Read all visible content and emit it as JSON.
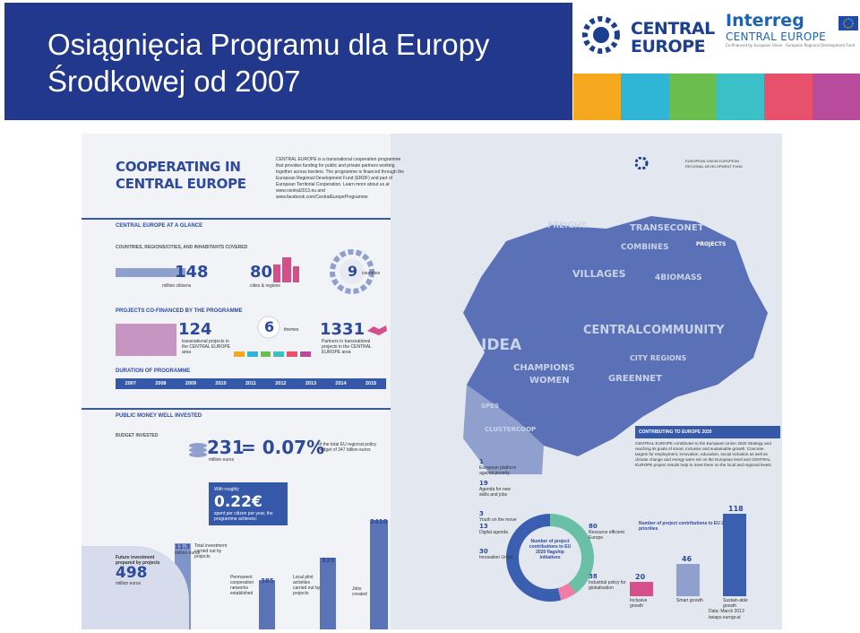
{
  "header": {
    "title_line1": "Osiągnięcia Programu dla Europy",
    "title_line2": "Środkowej od 2007",
    "logo_central": "CENTRAL",
    "logo_europe": "EUROPE",
    "interreg_name": "Interreg",
    "interreg_sub": "CENTRAL EUROPE",
    "interreg_fund": "Co-financed by European Union - European Regional Development Fund",
    "strip_colors": [
      "#f6a81f",
      "#2fb6d6",
      "#6abe4d",
      "#3cc0c7",
      "#e8516b",
      "#b84b9b"
    ]
  },
  "poster": {
    "title_line1": "COOPERATING IN",
    "title_line2": "CENTRAL EUROPE",
    "intro": "CENTRAL EUROPE is a transnational cooperation programme that provides funding for public and private partners working together across borders. The programme is financed through the European Regional Development Fund (ERDF) and part of European Territorial Cooperation. Learn more about us at www.central2013.eu and www.facebook.com/CentralEuropeProgramme",
    "glance": "CENTRAL EUROPE AT A GLANCE",
    "covered": "COUNTRIES, REGIONS/CITIES, AND INHABITANTS COVERED",
    "citizens_num": "148",
    "citizens_label": "million citizens",
    "cities_num": "80",
    "cities_label": "cities & regions",
    "countries_num": "9",
    "countries_label": "countries",
    "cofinanced": "PROJECTS CO-FINANCED BY THE PROGRAMME",
    "projects_num": "124",
    "projects_label": "transnational projects in the CENTRAL EUROPE area",
    "themes_num": "6",
    "themes_label": "themes",
    "partners_num": "1331",
    "partners_label": "Partners in transnational projects in the CENTRAL EUROPE area",
    "duration": "DURATION OF PROGRAMME",
    "years": [
      "2007",
      "2008",
      "2009",
      "2010",
      "2011",
      "2012",
      "2013",
      "2014",
      "2015"
    ],
    "money": "PUBLIC MONEY WELL INVESTED",
    "budget": "BUDGET INVESTED",
    "budget_num": "231",
    "budget_eq": "= 0.07%",
    "budget_label": "million euros",
    "budget_share": "of the total EU regional policy budget of 347 billion euros",
    "roughly": "With roughly",
    "per_citizen": "0.22€",
    "per_citizen_label": "spent per citizen per year, the programme achieves:",
    "future_label": "Future investment prepared by projects",
    "future_num": "498",
    "future_unit": "million euros",
    "total_inv": "Total investment carried out by projects",
    "total_inv_num": "11.3",
    "total_inv_unit": "million euros",
    "networks_num": "385",
    "networks_label": "Permanent cooperation networks established",
    "pilots_num": "839",
    "pilots_label": "Local pilot activities carried out by projects",
    "jobs_num": "2410",
    "jobs_label": "Jobs created",
    "map_words": [
      "FREIGHT",
      "CENTRALCOMMUNITY",
      "IDEA",
      "CHAMPIONS",
      "GREENNET",
      "VILLAGES",
      "COMBINES",
      "TRANSECONET",
      "4BIOMASS",
      "SPES",
      "WOMEN",
      "CLUSTERCOOP",
      "CITY REGIONS"
    ],
    "projects_tag": "PROJECTS",
    "contributing": "CONTRIBUTING TO EUROPE 2020",
    "contrib_text": "CENTRAL EUROPE contributes to the European Union 2020 Strategy and reaching its goals of smart, inclusive and sustainable growth. Concrete targets for employment, innovation, education, social inclusion as well as climate change and energy were set on the European level and CENTRAL EUROPE project results help to meet them on the local and regional levels.",
    "contrib_chart_title": "Number of project contributions to EU 2020 priorities",
    "donut_center": "Number of project contributions to EU 2020 flagship initiatives",
    "flagships": [
      {
        "num": "1",
        "label": "European platform against poverty"
      },
      {
        "num": "19",
        "label": "Agenda for new skills and jobs"
      },
      {
        "num": "3",
        "label": "Youth on the move"
      },
      {
        "num": "13",
        "label": "Digital agenda"
      },
      {
        "num": "30",
        "label": "Innovation Union"
      },
      {
        "num": "80",
        "label": "Resource efficient Europe"
      },
      {
        "num": "38",
        "label": "Industrial policy for globalisation"
      }
    ],
    "priorities": [
      {
        "num": "20",
        "label": "Inclusive growth"
      },
      {
        "num": "46",
        "label": "Smart growth"
      },
      {
        "num": "118",
        "label": "Sustain-able growth"
      }
    ],
    "date": "Data: March 2013",
    "credit": "bwaps eurogr.at",
    "eu_label": "EUROPEAN UNION EUROPEAN REGIONAL DEVELOPMENT FUND"
  }
}
